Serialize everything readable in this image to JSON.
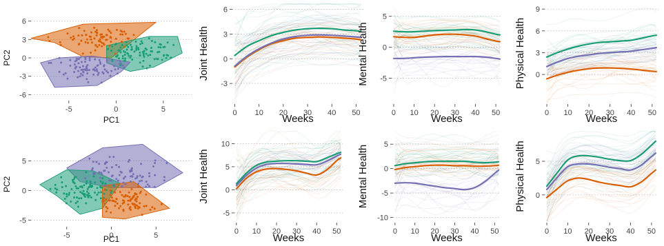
{
  "colors": {
    "green": "#1b9e77",
    "orange": "#d95f02",
    "purple": "#7570b3",
    "grid": "#bdbdbd",
    "axis": "#333333"
  },
  "chart_data": [
    {
      "id": "r1_pca",
      "type": "scatter",
      "xlabel": "PC1",
      "ylabel": "PC2",
      "xlim": [
        -9,
        8
      ],
      "ylim": [
        -6.3,
        6.3
      ],
      "xticks": [
        -5,
        0,
        5
      ],
      "yticks": [
        -6,
        -3,
        0,
        3,
        6
      ],
      "grid": "horizontal-dotted",
      "hulls": [
        {
          "color": "orange",
          "points": [
            [
              -9,
              3.2
            ],
            [
              -3.5,
              5.5
            ],
            [
              4.2,
              5.8
            ],
            [
              -0.5,
              0
            ],
            [
              -3.5,
              0.2
            ],
            [
              -6.5,
              2.5
            ]
          ]
        },
        {
          "color": "green",
          "points": [
            [
              -1,
              2
            ],
            [
              3.5,
              3.5
            ],
            [
              6.5,
              3.5
            ],
            [
              7,
              0.8
            ],
            [
              4,
              -1.5
            ],
            [
              1.5,
              -2.2
            ],
            [
              -1,
              -0.8
            ]
          ]
        },
        {
          "color": "purple",
          "points": [
            [
              -8,
              -0.8
            ],
            [
              -6,
              0
            ],
            [
              -2.5,
              0.3
            ],
            [
              1.5,
              -0.7
            ],
            [
              0.5,
              -2.3
            ],
            [
              -2,
              -4.5
            ],
            [
              -6.5,
              -4.8
            ]
          ]
        }
      ],
      "clusters": [
        {
          "color": "orange",
          "center": [
            -2,
            2.9
          ],
          "spread": [
            2.4,
            1.2
          ],
          "n": 80
        },
        {
          "color": "green",
          "center": [
            2.8,
            0.8
          ],
          "spread": [
            1.9,
            1.2
          ],
          "n": 95
        },
        {
          "color": "purple",
          "center": [
            -2.6,
            -1.8
          ],
          "spread": [
            2.0,
            1.2
          ],
          "n": 85
        }
      ]
    },
    {
      "id": "r1_joint",
      "type": "line",
      "xlabel": "Weeks",
      "ylabel": "Joint Health",
      "xlim": [
        -1,
        53
      ],
      "ylim": [
        -5,
        6.3
      ],
      "xticks": [
        0,
        10,
        20,
        30,
        40,
        50
      ],
      "yticks": [
        -3,
        0,
        3,
        6
      ],
      "grid": "horizontal-dotted",
      "x": [
        0,
        5,
        10,
        15,
        20,
        25,
        30,
        35,
        40,
        45,
        50,
        52
      ],
      "series": [
        {
          "color": "green",
          "values": [
            0.4,
            1.5,
            2.2,
            2.8,
            3.2,
            3.5,
            3.65,
            3.7,
            3.65,
            3.5,
            3.4,
            3.3
          ]
        },
        {
          "color": "orange",
          "values": [
            -1.0,
            0.2,
            1.1,
            1.8,
            2.2,
            2.5,
            2.6,
            2.65,
            2.6,
            2.5,
            2.4,
            2.3
          ]
        },
        {
          "color": "purple",
          "values": [
            -0.9,
            0.3,
            1.2,
            1.9,
            2.4,
            2.7,
            2.85,
            2.9,
            2.85,
            2.75,
            2.65,
            2.6
          ]
        }
      ],
      "bg_spread": [
        3.5,
        2.5,
        2.5
      ]
    },
    {
      "id": "r1_mental",
      "type": "line",
      "xlabel": "Weeks",
      "ylabel": "Mental Health",
      "xlim": [
        -1,
        53
      ],
      "ylim": [
        -8.5,
        6.3
      ],
      "xticks": [
        0,
        10,
        20,
        30,
        40,
        50
      ],
      "yticks": [
        -5,
        0,
        5
      ],
      "grid": "horizontal-dotted",
      "x": [
        0,
        5,
        10,
        15,
        20,
        25,
        30,
        35,
        40,
        45,
        50,
        52
      ],
      "series": [
        {
          "color": "green",
          "values": [
            2.6,
            2.5,
            2.5,
            2.6,
            2.7,
            2.75,
            2.8,
            2.85,
            2.8,
            2.5,
            2.1,
            2.0
          ]
        },
        {
          "color": "orange",
          "values": [
            1.7,
            1.6,
            1.6,
            1.8,
            2.0,
            2.1,
            2.1,
            2.0,
            1.8,
            1.4,
            1.0,
            0.9
          ]
        },
        {
          "color": "purple",
          "values": [
            -1.8,
            -1.8,
            -1.7,
            -1.6,
            -1.55,
            -1.5,
            -1.5,
            -1.5,
            -1.5,
            -1.6,
            -1.8,
            -1.9
          ]
        }
      ],
      "bg_spread": [
        2.5,
        2.5,
        4.5
      ]
    },
    {
      "id": "r1_physical",
      "type": "line",
      "xlabel": "Weeks",
      "ylabel": "Physical Health",
      "xlim": [
        -1,
        53
      ],
      "ylim": [
        -3.5,
        9.3
      ],
      "xticks": [
        0,
        10,
        20,
        30,
        40,
        50
      ],
      "yticks": [
        0,
        3,
        6,
        9
      ],
      "grid": "horizontal-dotted",
      "x": [
        0,
        5,
        10,
        15,
        20,
        25,
        30,
        35,
        40,
        45,
        50,
        52
      ],
      "series": [
        {
          "color": "green",
          "values": [
            2.4,
            3.0,
            3.5,
            3.9,
            4.2,
            4.4,
            4.5,
            4.6,
            4.7,
            5.0,
            5.3,
            5.4
          ]
        },
        {
          "color": "purple",
          "values": [
            1.1,
            1.7,
            2.2,
            2.5,
            2.7,
            2.9,
            3.0,
            3.1,
            3.2,
            3.4,
            3.6,
            3.7
          ]
        },
        {
          "color": "orange",
          "values": [
            -0.6,
            -0.1,
            0.3,
            0.6,
            0.8,
            0.9,
            0.9,
            0.85,
            0.75,
            0.6,
            0.45,
            0.4
          ]
        }
      ],
      "bg_spread": [
        3.0,
        2.0,
        2.5
      ]
    },
    {
      "id": "r2_pca",
      "type": "scatter",
      "xlabel": "PC1",
      "ylabel": "PC2",
      "xlim": [
        -9,
        9
      ],
      "ylim": [
        -5.4,
        7.5
      ],
      "xticks": [
        -5,
        0,
        5
      ],
      "yticks": [
        -5,
        0,
        5
      ],
      "grid": "horizontal-dotted",
      "hulls": [
        {
          "color": "purple",
          "points": [
            [
              -5,
              3.8
            ],
            [
              -1,
              7.2
            ],
            [
              3.5,
              7.8
            ],
            [
              8,
              3
            ],
            [
              5,
              0.5
            ],
            [
              0,
              0.5
            ],
            [
              -3.5,
              1.5
            ]
          ]
        },
        {
          "color": "green",
          "points": [
            [
              -8,
              1
            ],
            [
              -5,
              3.5
            ],
            [
              -2,
              3.3
            ],
            [
              1,
              1.2
            ],
            [
              -1,
              -3
            ],
            [
              -3.5,
              -4
            ],
            [
              -6,
              -1
            ]
          ]
        },
        {
          "color": "orange",
          "points": [
            [
              -1,
              0.8
            ],
            [
              2.5,
              1.5
            ],
            [
              6.5,
              -3
            ],
            [
              1.5,
              -4.8
            ],
            [
              -1,
              -4.5
            ]
          ]
        }
      ],
      "clusters": [
        {
          "color": "purple",
          "center": [
            0.8,
            2.5
          ],
          "spread": [
            2.5,
            1.4
          ],
          "n": 85
        },
        {
          "color": "green",
          "center": [
            -3.0,
            0.0
          ],
          "spread": [
            1.9,
            1.4
          ],
          "n": 95
        },
        {
          "color": "orange",
          "center": [
            1.5,
            -1.6
          ],
          "spread": [
            1.9,
            1.1
          ],
          "n": 85
        }
      ]
    },
    {
      "id": "r2_joint",
      "type": "line",
      "xlabel": "Weeks",
      "ylabel": "Joint Health",
      "xlim": [
        -1,
        53
      ],
      "ylim": [
        -6.2,
        12
      ],
      "xticks": [
        0,
        10,
        20,
        30,
        40,
        50
      ],
      "yticks": [
        -5,
        0,
        5,
        10
      ],
      "grid": "horizontal-dotted",
      "x": [
        0,
        5,
        10,
        15,
        20,
        25,
        30,
        35,
        40,
        45,
        50,
        52
      ],
      "series": [
        {
          "color": "green",
          "values": [
            1.3,
            3.6,
            5.3,
            6.0,
            6.2,
            6.3,
            6.3,
            6.2,
            6.1,
            6.9,
            7.8,
            8.1
          ]
        },
        {
          "color": "purple",
          "values": [
            0.9,
            3.1,
            4.7,
            5.5,
            5.7,
            5.7,
            5.6,
            5.5,
            5.4,
            6.2,
            7.3,
            7.7
          ]
        },
        {
          "color": "orange",
          "values": [
            0.2,
            2.5,
            3.9,
            4.5,
            4.6,
            4.4,
            4.1,
            3.6,
            3.2,
            4.3,
            6.3,
            6.9
          ]
        }
      ],
      "bg_spread": [
        4.5,
        4.5,
        5.0
      ]
    },
    {
      "id": "r2_mental",
      "type": "line",
      "xlabel": "Weeks",
      "ylabel": "Mental Health",
      "xlim": [
        -1,
        53
      ],
      "ylim": [
        -10.2,
        7
      ],
      "xticks": [
        0,
        10,
        20,
        30,
        40,
        50
      ],
      "yticks": [
        -10,
        -5,
        0,
        5
      ],
      "grid": "horizontal-dotted",
      "x": [
        0,
        5,
        10,
        15,
        20,
        25,
        30,
        35,
        40,
        45,
        50,
        52
      ],
      "series": [
        {
          "color": "green",
          "values": [
            0.6,
            1.0,
            1.2,
            1.4,
            1.5,
            1.5,
            1.5,
            1.5,
            1.3,
            1.2,
            1.3,
            1.4
          ]
        },
        {
          "color": "orange",
          "values": [
            -0.2,
            0.2,
            0.4,
            0.6,
            0.7,
            0.7,
            0.6,
            0.6,
            0.5,
            0.5,
            0.6,
            0.7
          ]
        },
        {
          "color": "purple",
          "values": [
            -3.0,
            -2.9,
            -3.0,
            -3.3,
            -3.6,
            -3.9,
            -4.1,
            -4.3,
            -3.9,
            -2.7,
            -1.0,
            -0.3
          ]
        }
      ],
      "bg_spread": [
        3.5,
        3.5,
        6.0
      ]
    },
    {
      "id": "r2_physical",
      "type": "line",
      "xlabel": "Weeks",
      "ylabel": "Physical Health",
      "xlim": [
        -1,
        53
      ],
      "ylim": [
        -3.5,
        9
      ],
      "xticks": [
        0,
        10,
        20,
        30,
        40,
        50
      ],
      "yticks": [
        0,
        5
      ],
      "grid": "horizontal-dotted",
      "x": [
        0,
        5,
        10,
        15,
        20,
        25,
        30,
        35,
        40,
        45,
        50,
        52
      ],
      "series": [
        {
          "color": "green",
          "values": [
            1.3,
            3.3,
            5.2,
            5.8,
            5.8,
            5.6,
            5.3,
            5.1,
            5.1,
            6.0,
            7.4,
            8.0
          ]
        },
        {
          "color": "purple",
          "values": [
            0.8,
            2.6,
            4.2,
            4.6,
            4.6,
            4.4,
            4.1,
            3.9,
            3.7,
            4.4,
            5.7,
            6.2
          ]
        },
        {
          "color": "orange",
          "values": [
            -0.4,
            0.9,
            2.1,
            2.5,
            2.3,
            1.9,
            1.6,
            1.4,
            1.2,
            1.9,
            3.2,
            3.7
          ]
        }
      ],
      "bg_spread": [
        3.5,
        3.0,
        3.0
      ]
    }
  ]
}
